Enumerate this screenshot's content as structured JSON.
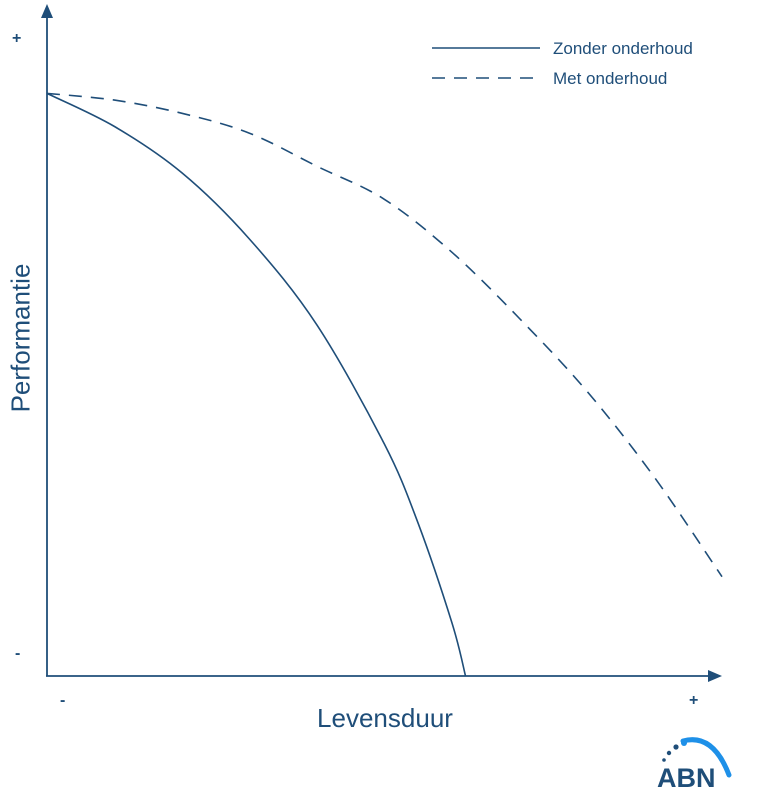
{
  "chart_data": {
    "type": "line",
    "xlabel": "Levensduur",
    "ylabel": "Performantie",
    "x_ticks": {
      "start": "-",
      "end": "+"
    },
    "y_ticks": {
      "top": "+",
      "bottom": "-"
    },
    "xlim": [
      0,
      1
    ],
    "ylim": [
      0,
      1
    ],
    "grid": false,
    "legend_position": "top-right",
    "series": [
      {
        "name": "Zonder onderhoud",
        "style": "solid",
        "x": [
          0,
          0.1,
          0.2,
          0.3,
          0.4,
          0.5,
          0.55,
          0.6,
          0.62
        ],
        "y": [
          0.88,
          0.83,
          0.76,
          0.66,
          0.53,
          0.35,
          0.23,
          0.08,
          0
        ]
      },
      {
        "name": "Met onderhoud",
        "style": "dashed",
        "x": [
          0,
          0.1,
          0.2,
          0.3,
          0.4,
          0.5,
          0.6,
          0.7,
          0.8,
          0.9,
          1.0
        ],
        "y": [
          0.88,
          0.87,
          0.85,
          0.82,
          0.77,
          0.72,
          0.64,
          0.54,
          0.43,
          0.3,
          0.15
        ]
      }
    ]
  },
  "colors": {
    "primary": "#1f4e79",
    "logo_accent": "#1e90e8"
  },
  "logo": {
    "text": "ABN"
  }
}
